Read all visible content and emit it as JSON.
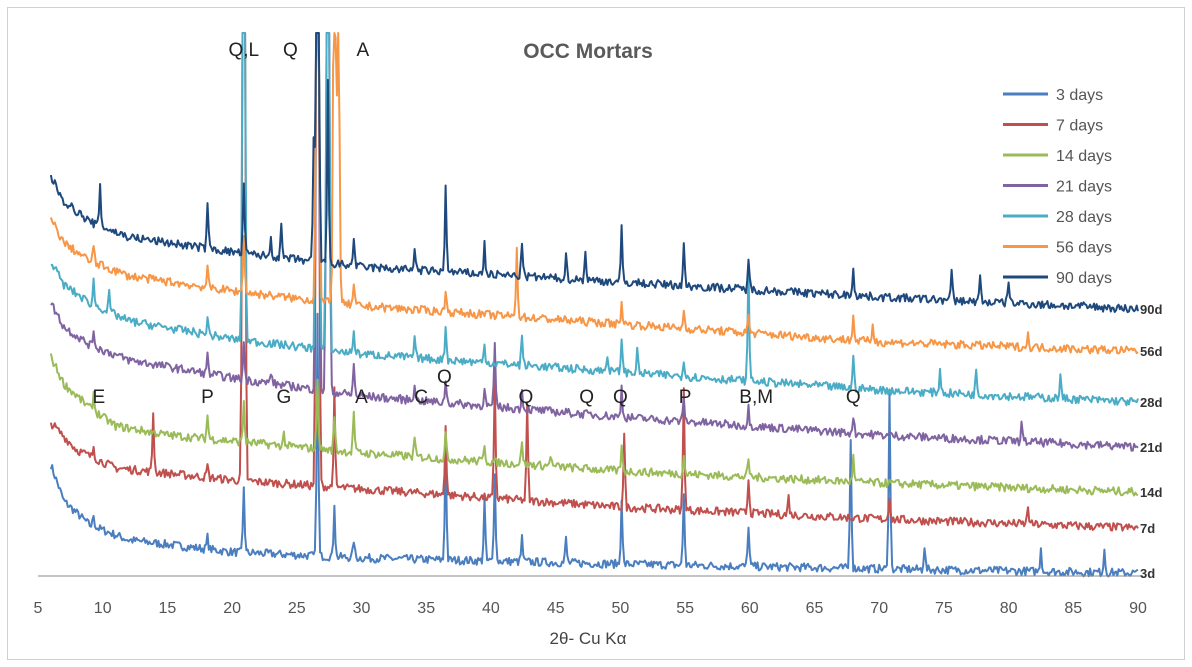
{
  "chart_data": {
    "type": "line",
    "title": "OCC Mortars",
    "xlabel": "2θ- Cu Kα",
    "ylabel": "",
    "xlim": [
      5,
      90
    ],
    "xticks": [
      "5",
      "10",
      "15",
      "20",
      "25",
      "30",
      "35",
      "40",
      "45",
      "50",
      "55",
      "60",
      "65",
      "70",
      "75",
      "80",
      "85",
      "90"
    ],
    "grid": false,
    "legend_position": "top-right",
    "series": [
      {
        "name": "3 days",
        "end_label": "3d",
        "color": "#4a7ebf",
        "baseline": [
          [
            6,
            0.185
          ],
          [
            7,
            0.125
          ],
          [
            9,
            0.085
          ],
          [
            12,
            0.06
          ],
          [
            20,
            0.04
          ],
          [
            30,
            0.03
          ],
          [
            50,
            0.02
          ],
          [
            70,
            0.012
          ],
          [
            90,
            0.005
          ]
        ],
        "peaks": [
          [
            9.3,
            0.02
          ],
          [
            18.1,
            0.02
          ],
          [
            20.9,
            0.11
          ],
          [
            26.6,
            0.4
          ],
          [
            27.9,
            0.09
          ],
          [
            29.4,
            0.03
          ],
          [
            36.5,
            0.2
          ],
          [
            39.5,
            0.1
          ],
          [
            40.3,
            0.15
          ],
          [
            42.4,
            0.04
          ],
          [
            45.8,
            0.04
          ],
          [
            50.1,
            0.11
          ],
          [
            54.9,
            0.12
          ],
          [
            59.9,
            0.07
          ],
          [
            67.8,
            0.22
          ],
          [
            70.8,
            0.3
          ],
          [
            73.5,
            0.04
          ],
          [
            82.5,
            0.04
          ],
          [
            87.4,
            0.04
          ]
        ]
      },
      {
        "name": "7 days",
        "end_label": "7d",
        "color": "#c0504d",
        "baseline": [
          [
            6,
            0.255
          ],
          [
            8,
            0.21
          ],
          [
            11,
            0.18
          ],
          [
            20,
            0.16
          ],
          [
            30,
            0.145
          ],
          [
            50,
            0.115
          ],
          [
            70,
            0.095
          ],
          [
            90,
            0.08
          ]
        ],
        "peaks": [
          [
            9.3,
            0.02
          ],
          [
            13.9,
            0.1
          ],
          [
            18.1,
            0.02
          ],
          [
            20.9,
            2.7
          ],
          [
            26.6,
            2.9
          ],
          [
            27.9,
            0.16
          ],
          [
            36.5,
            0.12
          ],
          [
            40.3,
            0.2
          ],
          [
            42.8,
            0.16
          ],
          [
            50.3,
            0.12
          ],
          [
            54.9,
            0.2
          ],
          [
            59.9,
            0.06
          ],
          [
            63,
            0.03
          ],
          [
            70.8,
            0.04
          ],
          [
            81.5,
            0.03
          ]
        ]
      },
      {
        "name": "14 days",
        "end_label": "14d",
        "color": "#9bbb59",
        "baseline": [
          [
            6,
            0.365
          ],
          [
            7,
            0.32
          ],
          [
            9,
            0.28
          ],
          [
            11,
            0.25
          ],
          [
            15,
            0.235
          ],
          [
            20,
            0.225
          ],
          [
            30,
            0.205
          ],
          [
            50,
            0.175
          ],
          [
            70,
            0.155
          ],
          [
            90,
            0.14
          ]
        ],
        "peaks": [
          [
            9.3,
            0.03
          ],
          [
            18.1,
            0.04
          ],
          [
            20.9,
            0.07
          ],
          [
            24,
            0.02
          ],
          [
            26.6,
            0.12
          ],
          [
            27.9,
            0.06
          ],
          [
            29.4,
            0.07
          ],
          [
            34.1,
            0.03
          ],
          [
            36.5,
            0.04
          ],
          [
            39.5,
            0.03
          ],
          [
            42.4,
            0.04
          ],
          [
            44.6,
            0.02
          ],
          [
            50.1,
            0.04
          ],
          [
            54.9,
            0.03
          ],
          [
            59.9,
            0.03
          ],
          [
            68,
            0.04
          ]
        ]
      },
      {
        "name": "21 days",
        "end_label": "21d",
        "color": "#8064a2",
        "baseline": [
          [
            6,
            0.455
          ],
          [
            7,
            0.415
          ],
          [
            9,
            0.385
          ],
          [
            12,
            0.36
          ],
          [
            20,
            0.33
          ],
          [
            30,
            0.3
          ],
          [
            50,
            0.265
          ],
          [
            70,
            0.235
          ],
          [
            90,
            0.215
          ]
        ],
        "peaks": [
          [
            9.3,
            0.03
          ],
          [
            18.1,
            0.03
          ],
          [
            20.9,
            0.06
          ],
          [
            23,
            0.02
          ],
          [
            26.6,
            2.7
          ],
          [
            27.4,
            2.7
          ],
          [
            29.4,
            0.05
          ],
          [
            34.1,
            0.03
          ],
          [
            36.5,
            0.04
          ],
          [
            39.5,
            0.03
          ],
          [
            40.3,
            0.1
          ],
          [
            42.4,
            0.03
          ],
          [
            50.1,
            0.05
          ],
          [
            54.9,
            0.04
          ],
          [
            59.9,
            0.03
          ],
          [
            68,
            0.03
          ],
          [
            81,
            0.03
          ]
        ]
      },
      {
        "name": "28 days",
        "end_label": "28d",
        "color": "#4bacc6",
        "baseline": [
          [
            6,
            0.525
          ],
          [
            7,
            0.485
          ],
          [
            9,
            0.455
          ],
          [
            12,
            0.425
          ],
          [
            20,
            0.395
          ],
          [
            30,
            0.37
          ],
          [
            50,
            0.34
          ],
          [
            70,
            0.31
          ],
          [
            90,
            0.29
          ]
        ],
        "peaks": [
          [
            9.3,
            0.04
          ],
          [
            10.5,
            0.03
          ],
          [
            18.1,
            0.03
          ],
          [
            20.9,
            1.3
          ],
          [
            26.6,
            2.6
          ],
          [
            27.4,
            2.2
          ],
          [
            29.4,
            0.04
          ],
          [
            34.1,
            0.03
          ],
          [
            36.5,
            0.06
          ],
          [
            39.5,
            0.03
          ],
          [
            42.4,
            0.05
          ],
          [
            49,
            0.03
          ],
          [
            50.1,
            0.06
          ],
          [
            51.3,
            0.04
          ],
          [
            54.9,
            0.03
          ],
          [
            59.9,
            0.19
          ],
          [
            68,
            0.05
          ],
          [
            74.7,
            0.04
          ],
          [
            77.5,
            0.04
          ],
          [
            84,
            0.04
          ]
        ]
      },
      {
        "name": "56 days",
        "end_label": "56d",
        "color": "#f79646",
        "baseline": [
          [
            6,
            0.595
          ],
          [
            7,
            0.555
          ],
          [
            9,
            0.525
          ],
          [
            12,
            0.5
          ],
          [
            20,
            0.475
          ],
          [
            30,
            0.45
          ],
          [
            50,
            0.42
          ],
          [
            70,
            0.39
          ],
          [
            90,
            0.375
          ]
        ],
        "peaks": [
          [
            9.3,
            0.03
          ],
          [
            18.1,
            0.03
          ],
          [
            20.9,
            0.1
          ],
          [
            26.6,
            2.3
          ],
          [
            27.9,
            0.8
          ],
          [
            28.2,
            0.6
          ],
          [
            29.4,
            0.03
          ],
          [
            36.5,
            0.04
          ],
          [
            42,
            0.12
          ],
          [
            50.1,
            0.04
          ],
          [
            54.9,
            0.03
          ],
          [
            59.9,
            0.03
          ],
          [
            68,
            0.04
          ],
          [
            69.5,
            0.03
          ],
          [
            81.5,
            0.02
          ]
        ]
      },
      {
        "name": "90 days",
        "end_label": "90d",
        "color": "#1f497d",
        "baseline": [
          [
            6,
            0.665
          ],
          [
            7,
            0.625
          ],
          [
            9,
            0.59
          ],
          [
            12,
            0.565
          ],
          [
            20,
            0.54
          ],
          [
            30,
            0.515
          ],
          [
            50,
            0.49
          ],
          [
            70,
            0.465
          ],
          [
            90,
            0.445
          ]
        ],
        "peaks": [
          [
            9.8,
            0.07
          ],
          [
            18.1,
            0.08
          ],
          [
            20.9,
            0.12
          ],
          [
            23,
            0.03
          ],
          [
            23.8,
            0.05
          ],
          [
            26.3,
            0.2
          ],
          [
            26.6,
            2.1
          ],
          [
            27.4,
            0.3
          ],
          [
            29.4,
            0.05
          ],
          [
            34.1,
            0.04
          ],
          [
            36.5,
            0.15
          ],
          [
            39.5,
            0.05
          ],
          [
            42.4,
            0.06
          ],
          [
            45.8,
            0.04
          ],
          [
            47.3,
            0.05
          ],
          [
            50.1,
            0.09
          ],
          [
            54.9,
            0.07
          ],
          [
            59.9,
            0.05
          ],
          [
            68,
            0.05
          ],
          [
            75.6,
            0.05
          ],
          [
            77.8,
            0.04
          ],
          [
            80,
            0.04
          ]
        ]
      }
    ],
    "annotations": [
      {
        "text": "Q,L",
        "x": 20.9,
        "pos": "top"
      },
      {
        "text": "Q",
        "x": 24.5,
        "pos": "top"
      },
      {
        "text": "A",
        "x": 30.1,
        "pos": "top"
      },
      {
        "text": "E",
        "x": 9.7,
        "pos": "low"
      },
      {
        "text": "P",
        "x": 18.1,
        "pos": "low"
      },
      {
        "text": "G",
        "x": 24,
        "pos": "low"
      },
      {
        "text": "A",
        "x": 30,
        "pos": "low"
      },
      {
        "text": "C",
        "x": 34.6,
        "pos": "low"
      },
      {
        "text": "Q",
        "x": 36.4,
        "pos": "high"
      },
      {
        "text": "Q",
        "x": 42.7,
        "pos": "low"
      },
      {
        "text": "Q",
        "x": 47.4,
        "pos": "low"
      },
      {
        "text": "Q",
        "x": 50,
        "pos": "low"
      },
      {
        "text": "P",
        "x": 55,
        "pos": "low"
      },
      {
        "text": "B,M",
        "x": 60.5,
        "pos": "low"
      },
      {
        "text": "Q",
        "x": 68,
        "pos": "low"
      }
    ]
  }
}
